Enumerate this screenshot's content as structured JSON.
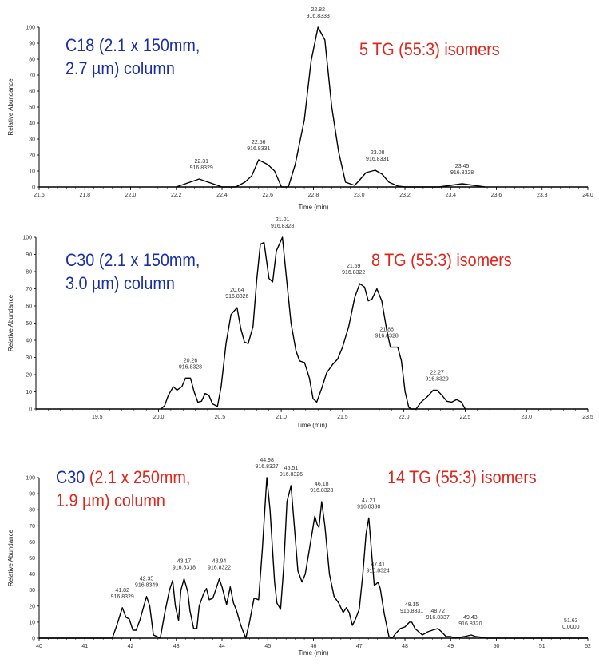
{
  "colors": {
    "blue": "#1a2ea8",
    "red": "#e0251b",
    "trace": "#000000"
  },
  "panels": [
    {
      "left_lines": [
        "C18 (2.1 x 150mm,",
        "2.7 µm) column"
      ],
      "right_text": "5 TG (55:3) isomers"
    },
    {
      "left_lines": [
        "C30 (2.1 x 150mm,",
        "3.0 µm) column"
      ],
      "right_text": "8 TG (55:3) isomers"
    },
    {
      "left_line1_blue": "C30",
      "left_line1_red": " (2.1 x 250mm,",
      "left_line2": "1.9 µm) column",
      "right_text": "14 TG (55:3) isomers"
    }
  ],
  "chart_data": [
    {
      "type": "line",
      "title": "C18 (2.1 x 150mm, 2.7 µm) column — 5 TG (55:3) isomers",
      "xlabel": "Time (min)",
      "ylabel": "Relative Abundance",
      "xlim": [
        21.6,
        24.0
      ],
      "ylim": [
        0,
        100
      ],
      "xticks": [
        "21.6",
        "21.8",
        "22.0",
        "22.2",
        "22.4",
        "22.6",
        "22.8",
        "23.0",
        "23.2",
        "23.4",
        "23.6",
        "23.8",
        "24.0"
      ],
      "yticks": [
        "0",
        "10",
        "20",
        "30",
        "40",
        "50",
        "60",
        "70",
        "80",
        "90",
        "100"
      ],
      "x": [
        22.2,
        22.3,
        22.4,
        22.46,
        22.5,
        22.53,
        22.56,
        22.6,
        22.63,
        22.66,
        22.69,
        22.72,
        22.76,
        22.79,
        22.82,
        22.85,
        22.88,
        22.91,
        22.94,
        22.98,
        23.0,
        23.03,
        23.07,
        23.1,
        23.13,
        23.17,
        23.2,
        23.35,
        23.45,
        23.55
      ],
      "y": [
        0,
        5,
        0,
        0,
        3,
        7,
        17,
        14,
        10,
        0,
        0,
        14,
        42,
        79,
        100,
        92,
        50,
        22,
        3,
        1,
        4,
        9,
        10.5,
        8,
        3,
        0.5,
        0,
        0,
        2,
        0
      ],
      "annotations": [
        {
          "x": 22.31,
          "y": 5,
          "rt": "22.31",
          "mz": "916.8329"
        },
        {
          "x": 22.56,
          "y": 17,
          "rt": "22.56",
          "mz": "916.8331"
        },
        {
          "x": 22.82,
          "y": 100,
          "rt": "22.82",
          "mz": "916.8333"
        },
        {
          "x": 23.08,
          "y": 10.5,
          "rt": "23.08",
          "mz": "916.8331"
        },
        {
          "x": 23.45,
          "y": 2,
          "rt": "23.45",
          "mz": "916.8328"
        }
      ]
    },
    {
      "type": "line",
      "title": "C30 (2.1 x 150mm, 3.0 µm) column — 8 TG (55:3) isomers",
      "xlabel": "Time (min)",
      "ylabel": "Relative Abundance",
      "xlim": [
        19.0,
        23.5
      ],
      "ylim": [
        0,
        100
      ],
      "xticks": [
        "19.5",
        "20.0",
        "20.5",
        "21.0",
        "21.5",
        "22.0",
        "22.5",
        "23.0",
        "23.5"
      ],
      "yticks": [
        "0",
        "10",
        "20",
        "30",
        "40",
        "50",
        "60",
        "70",
        "80",
        "90",
        "100"
      ],
      "x": [
        20.02,
        20.05,
        20.08,
        20.12,
        20.15,
        20.19,
        20.22,
        20.26,
        20.29,
        20.32,
        20.35,
        20.38,
        20.41,
        20.44,
        20.48,
        20.51,
        20.55,
        20.59,
        20.64,
        20.67,
        20.7,
        20.73,
        20.77,
        20.8,
        20.83,
        20.86,
        20.9,
        20.93,
        20.96,
        21.01,
        21.04,
        21.08,
        21.12,
        21.15,
        21.19,
        21.23,
        21.26,
        21.29,
        21.33,
        21.37,
        21.42,
        21.46,
        21.5,
        21.55,
        21.6,
        21.64,
        21.68,
        21.71,
        21.74,
        21.78,
        21.82,
        21.86,
        21.89,
        21.95,
        21.98,
        22.01,
        22.04,
        22.06,
        22.1,
        22.14,
        22.19,
        22.24,
        22.27,
        22.31,
        22.35,
        22.39,
        22.43,
        22.47,
        22.5
      ],
      "y": [
        0,
        2,
        8,
        13,
        11,
        13,
        18,
        18,
        10,
        4,
        4.5,
        9,
        8,
        3,
        1.5,
        13,
        38,
        55,
        59,
        47,
        39,
        38,
        48,
        75,
        96,
        97,
        76,
        74,
        92,
        100,
        78,
        50,
        34,
        28,
        27,
        18,
        6,
        4,
        12,
        21,
        26,
        29,
        36,
        48,
        65,
        73,
        71,
        63,
        64,
        70,
        63,
        46,
        36,
        36,
        28,
        10,
        1,
        0,
        0,
        4,
        7,
        11,
        11,
        8,
        4.5,
        4,
        5.5,
        4,
        0
      ],
      "annotations": [
        {
          "x": 20.26,
          "y": 18,
          "rt": "20.26",
          "mz": "916.8328"
        },
        {
          "x": 20.64,
          "y": 59,
          "rt": "20.64",
          "mz": "916.8326"
        },
        {
          "x": 21.01,
          "y": 100,
          "rt": "21.01",
          "mz": "916.8328"
        },
        {
          "x": 21.59,
          "y": 73,
          "rt": "21.59",
          "mz": "916.8322"
        },
        {
          "x": 21.86,
          "y": 36,
          "rt": "21.86",
          "mz": "916.8328"
        },
        {
          "x": 22.27,
          "y": 11,
          "rt": "22.27",
          "mz": "916.8329"
        }
      ]
    },
    {
      "type": "line",
      "title": "C30 (2.1 x 250mm, 1.9 µm) column — 14 TG (55:3) isomers",
      "xlabel": "Time (min)",
      "ylabel": "Relative Abundance",
      "xlim": [
        40,
        52
      ],
      "ylim": [
        0,
        100
      ],
      "xticks": [
        "40",
        "41",
        "42",
        "43",
        "44",
        "45",
        "46",
        "47",
        "48",
        "49",
        "50",
        "51",
        "52"
      ],
      "yticks": [
        "0",
        "10",
        "20",
        "30",
        "40",
        "50",
        "60",
        "70",
        "80",
        "90",
        "100"
      ],
      "x": [
        40,
        41.6,
        41.7,
        41.82,
        41.9,
        41.97,
        42.05,
        42.12,
        42.2,
        42.28,
        42.35,
        42.42,
        42.5,
        42.58,
        42.65,
        42.75,
        42.85,
        42.92,
        42.98,
        43.05,
        43.1,
        43.17,
        43.25,
        43.3,
        43.38,
        43.45,
        43.5,
        43.6,
        43.66,
        43.72,
        43.8,
        43.86,
        43.94,
        44.0,
        44.1,
        44.18,
        44.25,
        44.32,
        44.4,
        44.45,
        44.52,
        44.6,
        44.7,
        44.8,
        44.88,
        44.98,
        45.05,
        45.15,
        45.2,
        45.28,
        45.35,
        45.42,
        45.51,
        45.58,
        45.66,
        45.75,
        45.82,
        45.88,
        45.95,
        46.03,
        46.08,
        46.12,
        46.18,
        46.25,
        46.35,
        46.45,
        46.55,
        46.65,
        46.72,
        46.78,
        46.85,
        46.92,
        47.0,
        47.08,
        47.15,
        47.21,
        47.28,
        47.33,
        47.38,
        47.41,
        47.46,
        47.55,
        47.65,
        47.72,
        47.8,
        47.9,
        48.0,
        48.1,
        48.15,
        48.22,
        48.3,
        48.38,
        48.5,
        48.6,
        48.72,
        48.8,
        48.9,
        49.0,
        49.1,
        49.3,
        49.45,
        49.55,
        49.7,
        49.8,
        52
      ],
      "y": [
        0,
        0,
        8,
        19,
        13,
        12,
        5,
        5,
        11,
        19,
        26,
        20,
        2,
        1,
        0,
        16,
        30,
        36,
        20,
        11,
        30,
        37,
        29,
        17,
        6,
        6,
        20,
        28,
        31,
        24,
        25,
        30,
        37,
        32,
        21,
        32,
        22,
        17,
        9,
        5,
        0,
        10,
        25,
        24,
        55,
        100,
        80,
        35,
        22,
        18,
        45,
        85,
        95,
        70,
        42,
        35,
        40,
        50,
        62,
        76,
        71,
        69,
        85,
        70,
        40,
        26,
        22,
        16,
        19,
        16,
        8,
        12,
        18,
        40,
        65,
        75,
        50,
        33,
        34,
        35,
        31,
        15,
        1,
        0,
        3,
        6,
        7,
        10,
        10,
        6,
        4,
        2,
        4,
        5,
        6,
        4,
        1,
        1,
        0,
        1,
        2,
        1,
        0.5,
        0,
        0
      ],
      "annotations": [
        {
          "x": 41.82,
          "y": 19,
          "rt": "41.82",
          "mz": "916.8329"
        },
        {
          "x": 42.35,
          "y": 26,
          "rt": "42.35",
          "mz": "916.8349"
        },
        {
          "x": 43.17,
          "y": 37,
          "rt": "43.17",
          "mz": "916.8318"
        },
        {
          "x": 43.94,
          "y": 37,
          "rt": "43.94",
          "mz": "916.8322"
        },
        {
          "x": 44.98,
          "y": 100,
          "rt": "44.98",
          "mz": "916.8327"
        },
        {
          "x": 45.51,
          "y": 95,
          "rt": "45.51",
          "mz": "916.8326"
        },
        {
          "x": 46.18,
          "y": 85,
          "rt": "46.18",
          "mz": "916.8328"
        },
        {
          "x": 47.21,
          "y": 75,
          "rt": "47.21",
          "mz": "916.8330"
        },
        {
          "x": 47.41,
          "y": 35,
          "rt": "47.41",
          "mz": "916.8324"
        },
        {
          "x": 48.15,
          "y": 10,
          "rt": "48.15",
          "mz": "916.8331"
        },
        {
          "x": 48.72,
          "y": 6,
          "rt": "48.72",
          "mz": "916.8337"
        },
        {
          "x": 49.43,
          "y": 2,
          "rt": "49.43",
          "mz": "916.8320"
        },
        {
          "x": 51.63,
          "y": 0,
          "rt": "51.63",
          "mz": "0.0000"
        }
      ]
    }
  ]
}
